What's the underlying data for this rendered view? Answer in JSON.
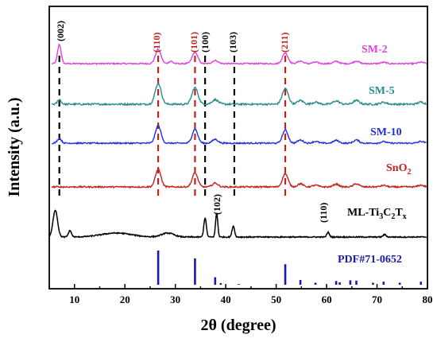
{
  "chart_data": {
    "type": "line",
    "xlabel": "2θ (degree)",
    "ylabel": "Intensity (a.u.)",
    "xlim": [
      5,
      80
    ],
    "x_ticks": [
      10,
      20,
      30,
      40,
      50,
      60,
      70,
      80
    ],
    "y_ticks_shown": false,
    "legend": "labels on the right, beside each curve",
    "series": [
      {
        "name": "SM-2",
        "color": "#e040e0"
      },
      {
        "name": "SM-5",
        "color": "#2a8c8c"
      },
      {
        "name": "SM-10",
        "color": "#1f2fe0"
      },
      {
        "name": "SnO2",
        "color": "#c0231c"
      },
      {
        "name": "ML-Ti3C2Tx",
        "color": "#000000"
      }
    ],
    "peaks_sno2": [
      26.6,
      33.9,
      37.9,
      51.8,
      54.8,
      57.8,
      61.9,
      65.9,
      71.3,
      78.7
    ],
    "peaks_ti3c2tx": [
      6.2,
      9.1,
      18.3,
      28.5,
      35.9,
      38.2,
      41.5,
      60.3
    ],
    "reference_pattern": {
      "label": "PDF#71-0652",
      "color": "#1a1aa8",
      "positions": [
        26.6,
        33.9,
        37.9,
        39.0,
        42.6,
        51.8,
        54.8,
        57.8,
        61.9,
        62.6,
        64.7,
        65.9,
        69.2,
        71.3,
        74.5,
        78.7
      ],
      "intensities": [
        100,
        77,
        22,
        5,
        2,
        60,
        14,
        6,
        11,
        7,
        13,
        12,
        6,
        9,
        6,
        9
      ]
    },
    "annotations": {
      "hkl_002": "(002)",
      "hkl_110": "(110)",
      "hkl_101": "(101)",
      "hkl_100": "(100)",
      "hkl_103": "(103)",
      "hkl_211": "(211)",
      "hkl_102": "(102)",
      "hkl_110_mxene": "(110)"
    },
    "dashed_lines": [
      {
        "x": 7.0,
        "color": "#000000"
      },
      {
        "x": 26.6,
        "color": "#c0231c"
      },
      {
        "x": 33.9,
        "color": "#c0231c"
      },
      {
        "x": 35.9,
        "color": "#000000"
      },
      {
        "x": 41.7,
        "color": "#000000"
      },
      {
        "x": 51.8,
        "color": "#c0231c"
      }
    ]
  },
  "labels": {
    "sm2": "SM-2",
    "sm5": "SM-5",
    "sm10": "SM-10",
    "sno2_main": "SnO",
    "sno2_sub": "2",
    "mx_ml": "ML-Ti",
    "mx_3": "3",
    "mx_c": "C",
    "mx_2": "2",
    "mx_t": "T",
    "mx_x": "x",
    "pdf": "PDF#71-0652"
  }
}
